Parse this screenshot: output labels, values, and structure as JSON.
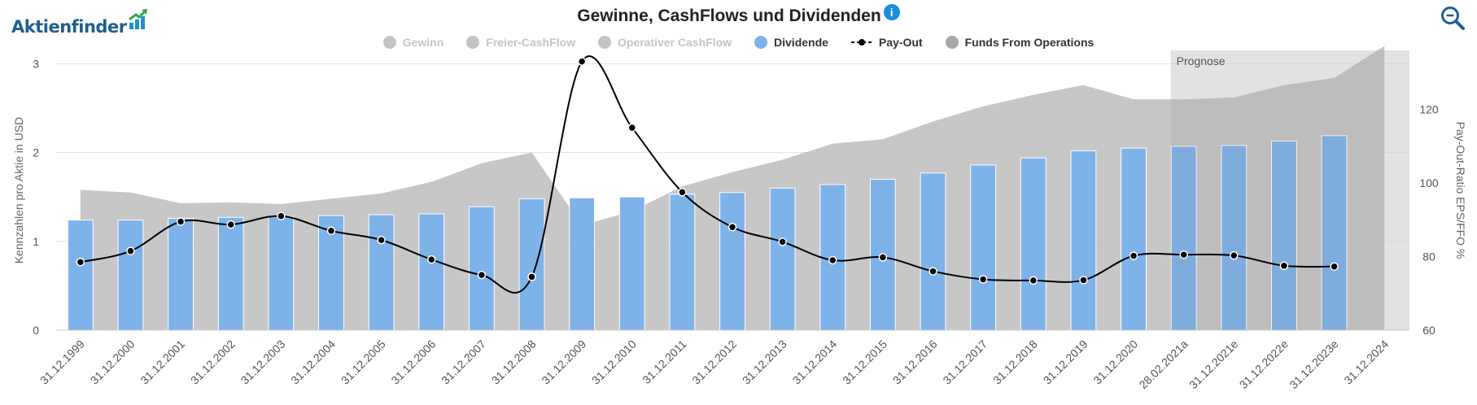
{
  "brand": {
    "name": "Aktienfinder"
  },
  "header": {
    "title": "Gewinne, CashFlows und Dividenden",
    "info_icon": "i"
  },
  "legend": [
    {
      "label": "Gewinn",
      "color": "#c4c4c4",
      "enabled": false,
      "marker": "circle"
    },
    {
      "label": "Freier-CashFlow",
      "color": "#c4c4c4",
      "enabled": false,
      "marker": "circle"
    },
    {
      "label": "Operativer CashFlow",
      "color": "#c4c4c4",
      "enabled": false,
      "marker": "circle"
    },
    {
      "label": "Dividende",
      "color": "#7eb3ea",
      "enabled": true,
      "marker": "circle"
    },
    {
      "label": "Pay-Out",
      "color": "#000000",
      "enabled": true,
      "marker": "line-dot"
    },
    {
      "label": "Funds From Operations",
      "color": "#a8a8a8",
      "enabled": true,
      "marker": "circle"
    }
  ],
  "chart_data": {
    "type": "bar",
    "categories": [
      "31.12.1999",
      "31.12.2000",
      "31.12.2001",
      "31.12.2002",
      "31.12.2003",
      "31.12.2004",
      "31.12.2005",
      "31.12.2006",
      "31.12.2007",
      "31.12.2008",
      "31.12.2009",
      "31.12.2010",
      "31.12.2011",
      "31.12.2012",
      "31.12.2013",
      "31.12.2014",
      "31.12.2015",
      "31.12.2016",
      "31.12.2017",
      "31.12.2018",
      "31.12.2019",
      "31.12.2020",
      "28.02.2021a",
      "31.12.2021e",
      "31.12.2022e",
      "31.12.2023e",
      "31.12.2024"
    ],
    "series": [
      {
        "name": "Dividende",
        "type": "bar",
        "axis": "left",
        "color": "#7eb3ea",
        "values": [
          1.24,
          1.24,
          1.26,
          1.27,
          1.28,
          1.29,
          1.3,
          1.31,
          1.39,
          1.48,
          1.49,
          1.5,
          1.53,
          1.55,
          1.6,
          1.64,
          1.7,
          1.77,
          1.86,
          1.94,
          2.02,
          2.05,
          2.07,
          2.08,
          2.13,
          2.19,
          null
        ]
      },
      {
        "name": "Funds From Operations",
        "type": "area",
        "axis": "left",
        "color": "#bdbdbd",
        "values": [
          1.58,
          1.55,
          1.43,
          1.44,
          1.42,
          1.48,
          1.54,
          1.67,
          1.88,
          2.0,
          1.18,
          1.34,
          1.62,
          1.78,
          1.92,
          2.1,
          2.15,
          2.35,
          2.52,
          2.65,
          2.76,
          2.6,
          2.6,
          2.62,
          2.76,
          2.84,
          3.2
        ]
      },
      {
        "name": "Pay-Out",
        "type": "line",
        "axis": "right",
        "color": "#000000",
        "values": [
          78.5,
          81.5,
          89.5,
          88.7,
          91.0,
          87.0,
          84.5,
          79.2,
          75.0,
          74.5,
          133.0,
          115.0,
          97.5,
          88.0,
          84.0,
          79.0,
          79.8,
          76.0,
          73.8,
          73.5,
          73.6,
          80.2,
          80.5,
          80.3,
          77.5,
          77.3,
          null
        ]
      }
    ],
    "forecast_label": "Prognose",
    "forecast_start_category": "28.02.2021a",
    "ylabel": "Kennzahlen pro Aktie in USD",
    "y2label": "Pay-Out-Ratio EPS/FFO %",
    "ylim": [
      0,
      3.15
    ],
    "yticks": [
      "0",
      "1",
      "2",
      "3"
    ],
    "y2lim": [
      60,
      136
    ],
    "y2ticks": [
      "60",
      "80",
      "100",
      "120"
    ],
    "grid": true
  }
}
